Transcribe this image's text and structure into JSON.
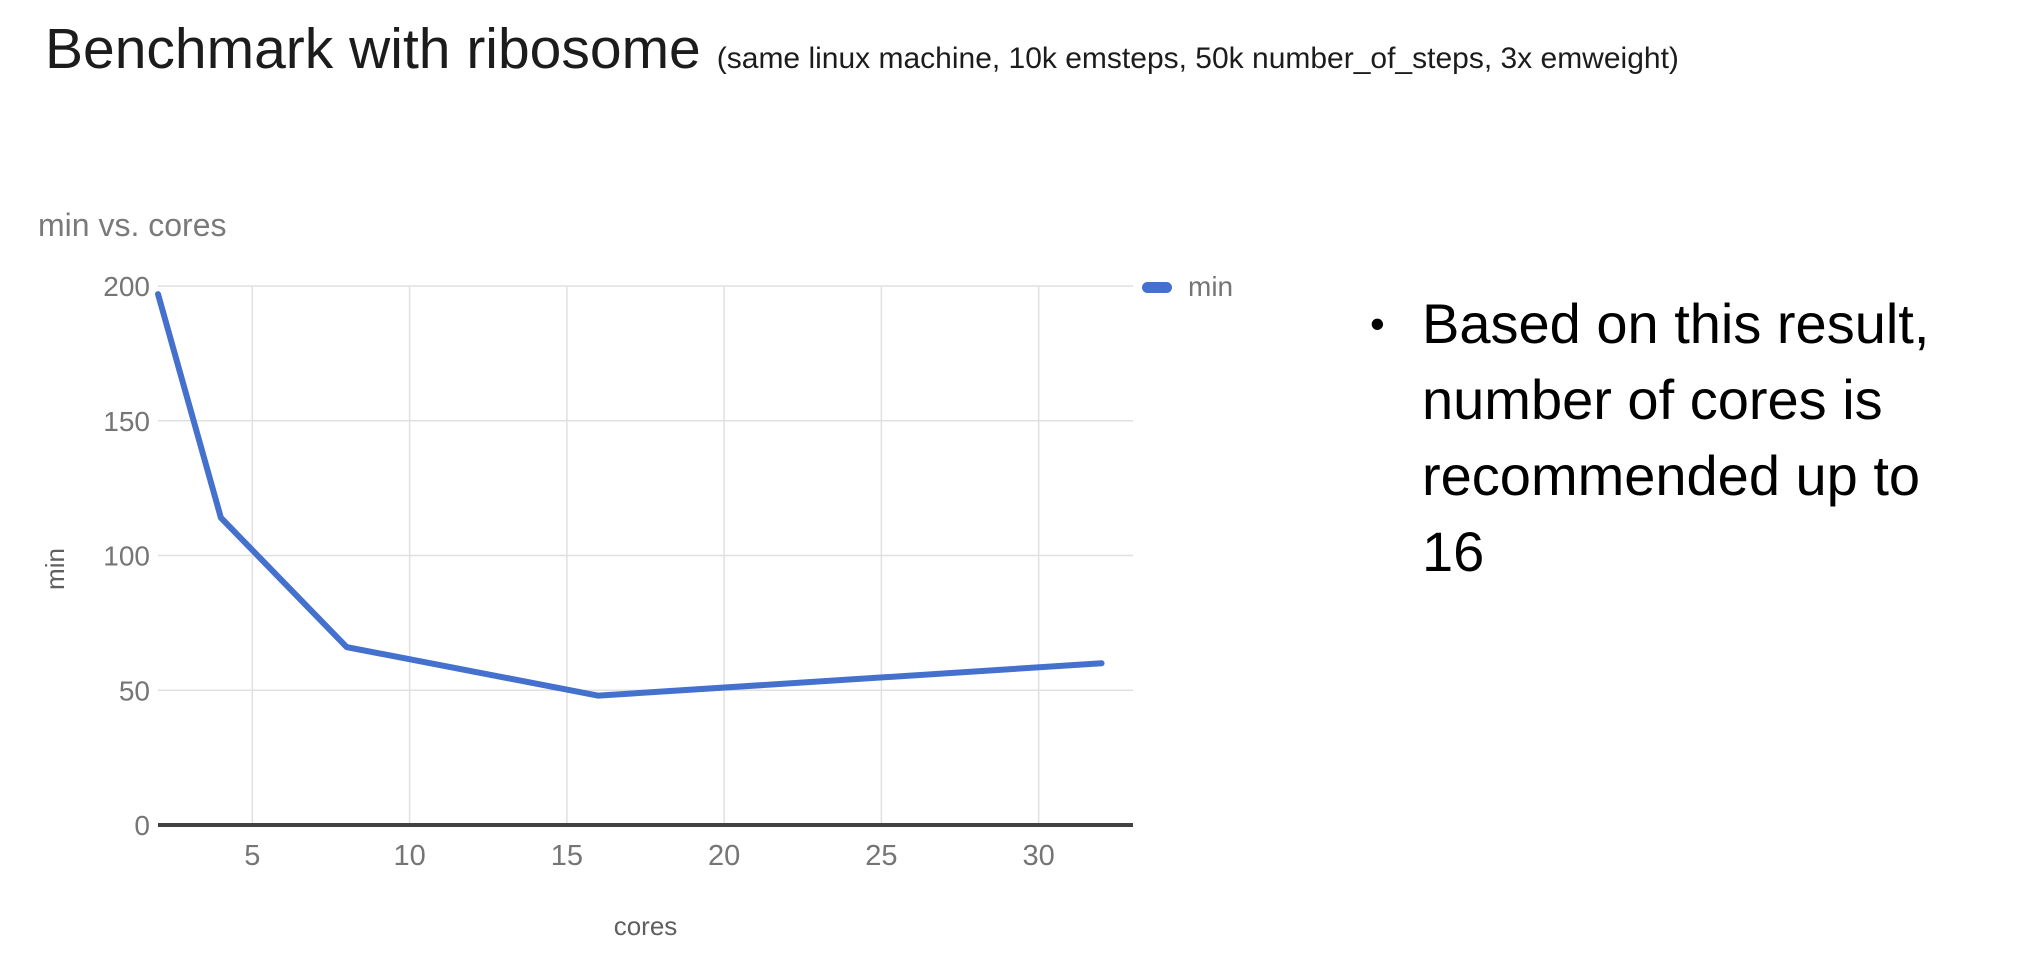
{
  "slide": {
    "title": "Benchmark with ribosome",
    "subtitle": "(same linux machine, 10k emsteps, 50k number_of_steps, 3x emweight)"
  },
  "chart": {
    "title": "min vs. cores",
    "legend_label": "min",
    "x_axis_title": "cores",
    "y_axis_title": "min"
  },
  "chart_data": {
    "type": "line",
    "title": "min vs. cores",
    "xlabel": "cores",
    "ylabel": "min",
    "x": [
      2,
      4,
      8,
      16,
      32
    ],
    "series": [
      {
        "name": "min",
        "values": [
          197,
          114,
          66,
          48,
          60
        ],
        "color": "#4470CE"
      }
    ],
    "xlim": [
      2,
      33
    ],
    "ylim": [
      0,
      200
    ],
    "x_ticks": [
      5,
      10,
      15,
      20,
      25,
      30
    ],
    "y_ticks": [
      0,
      50,
      100,
      150,
      200
    ],
    "grid": true,
    "legend_position": "right"
  },
  "note": {
    "bullet": "•",
    "lines": [
      "Based on this result,",
      "number of cores is",
      "recommended up to",
      "16"
    ]
  },
  "colors": {
    "series_blue": "#4470CE",
    "gridline": "#E0E0E0",
    "axis_baseline": "#424242",
    "axis_text": "#757575",
    "chart_title_text": "#7A7A7A",
    "slide_text": "#1C1C1C",
    "note_text": "#000000",
    "background": "#FFFFFF"
  }
}
